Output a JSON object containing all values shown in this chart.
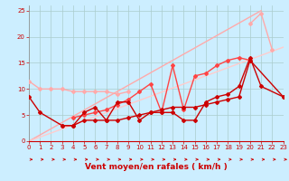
{
  "xlabel": "Vent moyen/en rafales ( km/h )",
  "xlim": [
    0,
    23
  ],
  "ylim": [
    0,
    26
  ],
  "xticks": [
    0,
    1,
    2,
    3,
    4,
    5,
    6,
    7,
    8,
    9,
    10,
    11,
    12,
    13,
    14,
    15,
    16,
    17,
    18,
    19,
    20,
    21,
    22,
    23
  ],
  "yticks": [
    0,
    5,
    10,
    15,
    20,
    25
  ],
  "background_color": "#cceeff",
  "grid_color": "#aacccc",
  "lines": [
    {
      "x": [
        0,
        1,
        3,
        4,
        5,
        6,
        7,
        8,
        9,
        10,
        11,
        12,
        13,
        14,
        15,
        16,
        17,
        18,
        19,
        20,
        21,
        23
      ],
      "y": [
        8.5,
        5.5,
        3.0,
        3.0,
        5.5,
        6.5,
        4.0,
        7.5,
        7.5,
        4.0,
        5.5,
        5.5,
        5.5,
        4.0,
        4.0,
        7.5,
        8.5,
        9.0,
        10.5,
        16.0,
        10.5,
        8.5
      ],
      "color": "#cc0000",
      "linewidth": 1.0,
      "marker": "D",
      "markersize": 2.0,
      "zorder": 5
    },
    {
      "x": [
        3,
        4,
        5,
        6,
        7,
        8,
        9,
        10,
        11,
        12,
        13,
        14,
        15,
        16,
        17,
        18,
        19,
        20,
        23
      ],
      "y": [
        3.0,
        3.0,
        4.0,
        4.0,
        4.0,
        4.0,
        4.5,
        5.0,
        5.5,
        6.0,
        6.5,
        6.5,
        6.5,
        7.0,
        7.5,
        8.0,
        8.5,
        15.5,
        8.5
      ],
      "color": "#cc0000",
      "linewidth": 1.0,
      "marker": "D",
      "markersize": 2.0,
      "zorder": 5
    },
    {
      "x": [
        4,
        5,
        6,
        7,
        8,
        9,
        10,
        11,
        12,
        13,
        14,
        15,
        16,
        17,
        18,
        19,
        20
      ],
      "y": [
        4.5,
        5.0,
        5.5,
        6.0,
        7.0,
        8.0,
        9.5,
        11.0,
        5.5,
        14.5,
        6.0,
        12.5,
        13.0,
        14.5,
        15.5,
        16.0,
        15.5
      ],
      "color": "#ff4444",
      "linewidth": 1.0,
      "marker": "D",
      "markersize": 2.0,
      "zorder": 4
    },
    {
      "x": [
        0,
        1,
        2,
        3,
        4,
        5,
        6,
        7,
        8,
        9
      ],
      "y": [
        11.5,
        10.0,
        10.0,
        10.0,
        9.5,
        9.5,
        9.5,
        9.5,
        9.0,
        9.5
      ],
      "color": "#ffaaaa",
      "linewidth": 1.0,
      "marker": "D",
      "markersize": 2.0,
      "zorder": 3
    },
    {
      "x": [
        20,
        21,
        22
      ],
      "y": [
        22.5,
        24.5,
        17.5
      ],
      "color": "#ffaaaa",
      "linewidth": 1.0,
      "marker": "D",
      "markersize": 2.0,
      "zorder": 3
    },
    {
      "x": [
        0,
        21
      ],
      "y": [
        0,
        25
      ],
      "color": "#ffaaaa",
      "linewidth": 1.0,
      "marker": null,
      "markersize": 0,
      "zorder": 2
    },
    {
      "x": [
        0,
        23
      ],
      "y": [
        0,
        18
      ],
      "color": "#ffcccc",
      "linewidth": 1.0,
      "marker": null,
      "markersize": 0,
      "zorder": 2
    }
  ],
  "arrow_color": "#cc0000",
  "tick_color": "#cc0000",
  "xlabel_color": "#cc0000",
  "xlabel_fontsize": 6.5,
  "tick_fontsize": 5.0
}
